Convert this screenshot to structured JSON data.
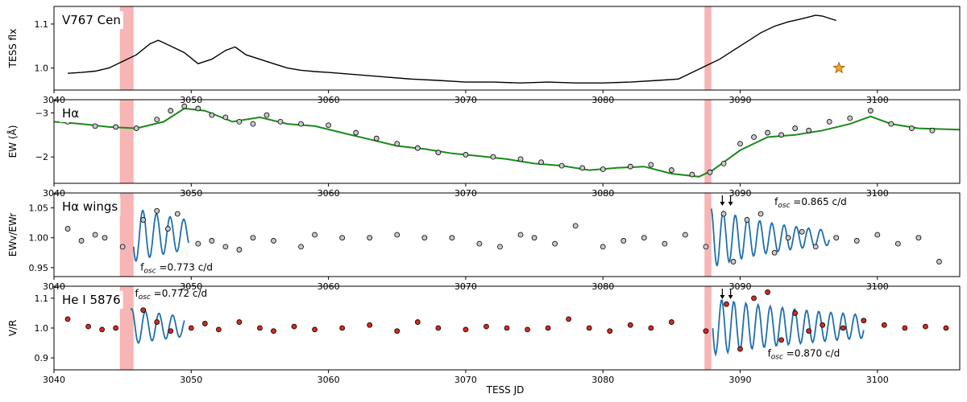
{
  "figure": {
    "xlabel": "TESS JD",
    "xticks": [
      3040,
      3050,
      3060,
      3070,
      3080,
      3090,
      3100
    ],
    "xlim": [
      3040,
      3106
    ],
    "shaded_bands": [
      [
        3044.8,
        3045.8
      ],
      [
        3087.4,
        3087.9
      ]
    ],
    "colors": {
      "band": "#f7a8a8",
      "flux_line": "#000000",
      "ew_fit": "#1a8a1a",
      "oscillation_fit": "#1f6fb0",
      "ew_points": "#c8c8c8",
      "heI_points": "#d42a1e",
      "star_marker": "#f5a623"
    }
  },
  "chart_data": [
    {
      "type": "line",
      "panel_label": "V767 Cen",
      "ylabel": "TESS flx",
      "ylim": [
        0.95,
        1.14
      ],
      "yticks": [
        1.0,
        1.1
      ],
      "yticklabels": [
        "1.0",
        "1.1"
      ],
      "series": [
        {
          "x": [
            3041.0,
            3042,
            3043,
            3044,
            3045,
            3046,
            3047,
            3047.6,
            3048.5,
            3049.5,
            3050.5,
            3051.5,
            3052.5,
            3053.2,
            3054,
            3055,
            3056,
            3057,
            3058,
            3059,
            3060,
            3062,
            3064,
            3066,
            3068,
            3070,
            3072,
            3074,
            3076,
            3078,
            3080,
            3082,
            3084,
            3085.5,
            3086.5,
            3087.5,
            3088.5,
            3089.5,
            3090.5,
            3091.5,
            3092.5,
            3093.5,
            3094.5,
            3095.5,
            3096.0,
            3097.0
          ],
          "y": [
            0.988,
            0.99,
            0.993,
            1.0,
            1.015,
            1.03,
            1.055,
            1.063,
            1.05,
            1.035,
            1.01,
            1.02,
            1.04,
            1.048,
            1.03,
            1.02,
            1.01,
            1.0,
            0.995,
            0.992,
            0.99,
            0.985,
            0.98,
            0.975,
            0.972,
            0.968,
            0.968,
            0.966,
            0.968,
            0.966,
            0.966,
            0.968,
            0.972,
            0.975,
            0.99,
            1.005,
            1.02,
            1.04,
            1.06,
            1.08,
            1.095,
            1.105,
            1.112,
            1.12,
            1.118,
            1.108
          ]
        }
      ],
      "star": {
        "x": 3097.2,
        "y": 1.0
      }
    },
    {
      "type": "scatter",
      "panel_label": "Hα",
      "ylabel": "EW (Å)",
      "ylim": [
        -3.3,
        -1.4
      ],
      "y_inverted": true,
      "yticks": [
        -3,
        -2
      ],
      "yticklabels": [
        "−3",
        "−2"
      ],
      "fit": {
        "x": [
          3040,
          3042,
          3044,
          3046,
          3048,
          3049.5,
          3051,
          3053,
          3055,
          3057,
          3059,
          3061,
          3063,
          3065,
          3067,
          3069,
          3071,
          3073,
          3075,
          3077,
          3079,
          3081,
          3083,
          3085,
          3087,
          3088,
          3090,
          3092,
          3094,
          3096,
          3098,
          3099.5,
          3101,
          3103,
          3106
        ],
        "y": [
          -2.8,
          -2.75,
          -2.68,
          -2.65,
          -2.8,
          -3.1,
          -3.05,
          -2.8,
          -2.9,
          -2.75,
          -2.7,
          -2.55,
          -2.4,
          -2.25,
          -2.18,
          -2.08,
          -2.02,
          -1.95,
          -1.85,
          -1.8,
          -1.7,
          -1.75,
          -1.78,
          -1.62,
          -1.55,
          -1.7,
          -2.15,
          -2.45,
          -2.5,
          -2.6,
          -2.75,
          -2.92,
          -2.75,
          -2.65,
          -2.62
        ]
      },
      "points": {
        "x": [
          3041,
          3043,
          3044.5,
          3046,
          3047.5,
          3048.5,
          3049.5,
          3050.5,
          3051.5,
          3052.5,
          3053.5,
          3054.5,
          3055.5,
          3056.5,
          3058,
          3060,
          3062,
          3063.5,
          3065,
          3066.5,
          3068,
          3070,
          3072,
          3074,
          3075.5,
          3077,
          3078.5,
          3080,
          3082,
          3083.5,
          3085,
          3086.5,
          3087.8,
          3088.8,
          3090,
          3091,
          3092,
          3093,
          3094,
          3095,
          3096.5,
          3098,
          3099.5,
          3101,
          3102.5,
          3104
        ],
        "y": [
          -2.8,
          -2.7,
          -2.68,
          -2.65,
          -2.85,
          -3.05,
          -3.15,
          -3.1,
          -2.95,
          -2.9,
          -2.8,
          -2.75,
          -2.95,
          -2.8,
          -2.75,
          -2.72,
          -2.55,
          -2.42,
          -2.3,
          -2.2,
          -2.1,
          -2.05,
          -2.0,
          -1.95,
          -1.88,
          -1.8,
          -1.75,
          -1.72,
          -1.78,
          -1.82,
          -1.7,
          -1.6,
          -1.65,
          -1.85,
          -2.3,
          -2.45,
          -2.55,
          -2.5,
          -2.65,
          -2.6,
          -2.8,
          -2.88,
          -3.05,
          -2.75,
          -2.65,
          -2.6
        ]
      }
    },
    {
      "type": "scatter",
      "panel_label": "Hα wings",
      "ylabel": "EWv/EWr",
      "ylim": [
        0.935,
        1.075
      ],
      "yticks": [
        0.95,
        1.0,
        1.05
      ],
      "yticklabels": [
        "0.95",
        "1.00",
        "1.05"
      ],
      "annotations": [
        {
          "text": "f",
          "sub": "osc",
          "rest": " =0.773 c/d",
          "x": 3046.3,
          "y": 0.945
        },
        {
          "text": "f",
          "sub": "osc",
          "rest": " =0.865 c/d",
          "x": 3092.5,
          "y": 1.055
        }
      ],
      "arrows": [
        3088.7,
        3089.3
      ],
      "osc_fits": [
        {
          "x0": 3045.8,
          "x1": 3049.8,
          "freq": 0.773,
          "base": 1.005,
          "amp": 0.045,
          "decay": 0.15,
          "phase": 3.6
        },
        {
          "x0": 3087.9,
          "x1": 3096.5,
          "freq": 0.865,
          "base": 1.0,
          "amp": 0.05,
          "decay": 0.16,
          "phase": 1.8
        }
      ],
      "points": {
        "x": [
          3041,
          3042,
          3043,
          3043.7,
          3045,
          3046.5,
          3047.5,
          3048.3,
          3049,
          3050.5,
          3051.5,
          3052.5,
          3053.5,
          3054.5,
          3056,
          3058,
          3059,
          3061,
          3063,
          3065,
          3067,
          3069,
          3071,
          3072.5,
          3074,
          3075,
          3076.5,
          3078,
          3080,
          3081.5,
          3083,
          3084.5,
          3086,
          3087.5,
          3088.8,
          3089.5,
          3090.5,
          3091.5,
          3092.5,
          3093.5,
          3094.5,
          3095.5,
          3097,
          3098.5,
          3100,
          3101.5,
          3103,
          3104.5
        ],
        "y": [
          1.015,
          0.995,
          1.005,
          1.0,
          0.985,
          1.03,
          1.045,
          1.015,
          1.04,
          0.99,
          0.995,
          0.985,
          0.98,
          1.0,
          0.995,
          0.985,
          1.005,
          1.0,
          1.0,
          1.005,
          1.0,
          1.0,
          0.99,
          0.985,
          1.005,
          1.0,
          0.99,
          1.02,
          0.985,
          0.995,
          1.0,
          0.99,
          1.005,
          0.985,
          1.04,
          0.96,
          1.03,
          1.04,
          0.975,
          1.0,
          1.01,
          0.985,
          1.0,
          0.995,
          1.005,
          0.99,
          1.0,
          0.96
        ]
      }
    },
    {
      "type": "scatter",
      "panel_label": "He I 5876",
      "ylabel": "V/R",
      "ylim": [
        0.86,
        1.14
      ],
      "yticks": [
        0.9,
        1.0,
        1.1
      ],
      "yticklabels": [
        "0.9",
        "1.0",
        "1.1"
      ],
      "annotations": [
        {
          "text": "f",
          "sub": "osc",
          "rest": " =0.772 c/d",
          "x": 3045.9,
          "y": 1.105
        },
        {
          "text": "f",
          "sub": "osc",
          "rest": " =0.870 c/d",
          "x": 3092.0,
          "y": 0.905
        }
      ],
      "arrows": [
        3088.7,
        3089.3
      ],
      "osc_fits": [
        {
          "x0": 3045.6,
          "x1": 3049.5,
          "freq": 0.772,
          "base": 1.005,
          "amp": 0.06,
          "decay": 0.15,
          "phase": 1.2
        },
        {
          "x0": 3088.0,
          "x1": 3099.0,
          "freq": 0.87,
          "base": 1.005,
          "amp": 0.095,
          "decay": 0.08,
          "phase": 3.2
        }
      ],
      "points": {
        "x": [
          3041,
          3042.5,
          3043.5,
          3044.5,
          3046.5,
          3047.5,
          3048.5,
          3050,
          3051,
          3052,
          3053.5,
          3055,
          3056,
          3057.5,
          3059,
          3061,
          3063,
          3065,
          3066.5,
          3068,
          3070,
          3071.5,
          3073,
          3074.5,
          3076,
          3077.5,
          3079,
          3080.5,
          3082,
          3083.5,
          3085,
          3087.5,
          3089,
          3090,
          3091,
          3092,
          3093,
          3094,
          3095,
          3096,
          3097.5,
          3099,
          3100.5,
          3102,
          3103.5,
          3105
        ],
        "y": [
          1.03,
          1.005,
          0.995,
          1.0,
          1.06,
          1.02,
          0.99,
          1.0,
          1.015,
          0.995,
          1.02,
          1.0,
          0.99,
          1.005,
          0.995,
          1.0,
          1.01,
          0.99,
          1.02,
          1.0,
          0.995,
          1.005,
          1.0,
          0.995,
          1.0,
          1.03,
          1.0,
          0.99,
          1.01,
          1.0,
          1.02,
          0.99,
          1.08,
          0.93,
          1.1,
          1.12,
          0.96,
          1.05,
          0.99,
          1.01,
          1.0,
          1.025,
          1.01,
          1.0,
          1.005,
          1.0
        ]
      }
    }
  ]
}
